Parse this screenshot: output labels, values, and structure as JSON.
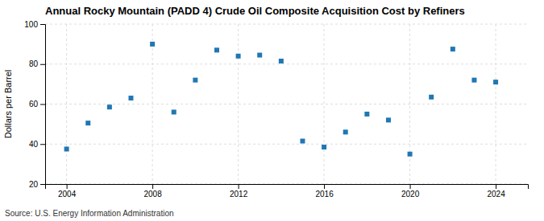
{
  "chart_data": {
    "type": "scatter",
    "title": "Annual Rocky Mountain (PADD 4) Crude Oil Composite Acquisition Cost by Refiners",
    "ylabel": "Dollars per Barrel",
    "annotation": "Source: U.S. Energy Information Administration",
    "x": [
      2004,
      2005,
      2006,
      2007,
      2008,
      2009,
      2010,
      2011,
      2012,
      2013,
      2014,
      2015,
      2016,
      2017,
      2018,
      2019,
      2020,
      2021,
      2022,
      2023,
      2024
    ],
    "values": [
      37.5,
      50.5,
      58.5,
      63.0,
      90.0,
      56.0,
      72.0,
      87.0,
      84.0,
      84.5,
      81.5,
      41.5,
      38.5,
      46.0,
      55.0,
      52.0,
      35.0,
      63.5,
      87.5,
      72.0,
      71.0
    ],
    "xlim": [
      2003.0,
      2025.5
    ],
    "xticks": [
      2004,
      2008,
      2012,
      2016,
      2020,
      2024
    ],
    "ylim": [
      20,
      100
    ],
    "yticks": [
      20,
      40,
      60,
      80,
      100
    ],
    "grid": true,
    "marker": "square"
  }
}
